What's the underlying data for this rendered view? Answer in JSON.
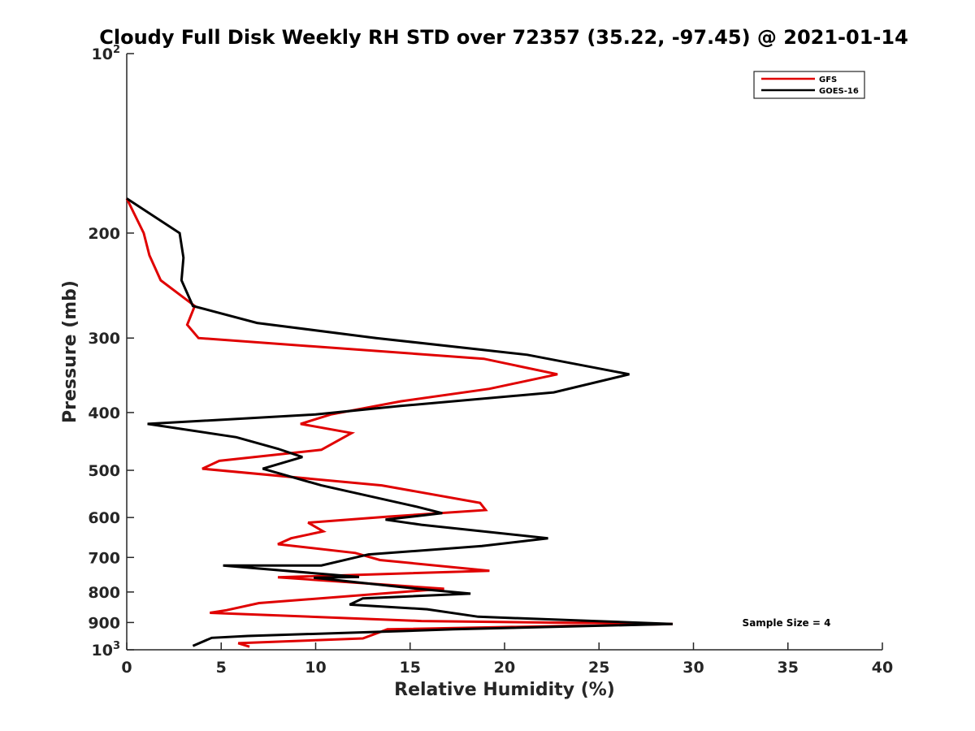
{
  "chart_data": {
    "type": "line",
    "title": "Cloudy Full Disk Weekly RH STD over 72357 (35.22, -97.45) @ 2021-01-14",
    "xlabel": "Relative Humidity (%)",
    "ylabel": "Pressure (mb)",
    "xlim": [
      0,
      40
    ],
    "ylim": [
      100,
      1000
    ],
    "y_scale": "log",
    "y_reversed": true,
    "x_ticks": [
      "0",
      "5",
      "10",
      "15",
      "20",
      "25",
      "30",
      "35",
      "40"
    ],
    "y_ticks": [
      {
        "value": 100,
        "base": "10",
        "exp": "2"
      },
      {
        "value": 200,
        "label": "200"
      },
      {
        "value": 300,
        "label": "300"
      },
      {
        "value": 400,
        "label": "400"
      },
      {
        "value": 500,
        "label": "500"
      },
      {
        "value": 600,
        "label": "600"
      },
      {
        "value": 700,
        "label": "700"
      },
      {
        "value": 800,
        "label": "800"
      },
      {
        "value": 900,
        "label": "900"
      },
      {
        "value": 1000,
        "base": "10",
        "exp": "3"
      }
    ],
    "grid": false,
    "legend_position": "top-right",
    "annotation": "Sample Size = 4",
    "series": [
      {
        "name": "GFS",
        "color": "#e00000",
        "points": [
          [
            0.0,
            175
          ],
          [
            0.9,
            200
          ],
          [
            1.2,
            218
          ],
          [
            1.8,
            240
          ],
          [
            3.6,
            265
          ],
          [
            3.2,
            285
          ],
          [
            3.8,
            300
          ],
          [
            18.9,
            325
          ],
          [
            22.8,
            345
          ],
          [
            19.2,
            365
          ],
          [
            14.5,
            383
          ],
          [
            10.8,
            403
          ],
          [
            9.2,
            418
          ],
          [
            11.9,
            433
          ],
          [
            10.3,
            462
          ],
          [
            4.9,
            482
          ],
          [
            4.0,
            497
          ],
          [
            13.5,
            530
          ],
          [
            18.7,
            567
          ],
          [
            19.0,
            583
          ],
          [
            13.8,
            598
          ],
          [
            9.6,
            612
          ],
          [
            10.4,
            633
          ],
          [
            8.7,
            650
          ],
          [
            8.0,
            665
          ],
          [
            12.1,
            688
          ],
          [
            13.4,
            707
          ],
          [
            19.2,
            737
          ],
          [
            8.0,
            756
          ],
          [
            16.8,
            790
          ],
          [
            7.0,
            835
          ],
          [
            5.3,
            858
          ],
          [
            4.4,
            867
          ],
          [
            15.6,
            895
          ],
          [
            28.9,
            905
          ],
          [
            13.8,
            924
          ],
          [
            12.5,
            957
          ],
          [
            5.9,
            975
          ],
          [
            6.5,
            988
          ]
        ]
      },
      {
        "name": "GOES-16",
        "color": "#000000",
        "points": [
          [
            0.0,
            175
          ],
          [
            2.8,
            200
          ],
          [
            3.0,
            220
          ],
          [
            2.9,
            240
          ],
          [
            3.5,
            265
          ],
          [
            6.9,
            283
          ],
          [
            13.2,
            300
          ],
          [
            21.2,
            320
          ],
          [
            26.6,
            345
          ],
          [
            22.6,
            370
          ],
          [
            14.5,
            390
          ],
          [
            10.0,
            403
          ],
          [
            1.1,
            418
          ],
          [
            5.8,
            440
          ],
          [
            8.0,
            460
          ],
          [
            9.3,
            475
          ],
          [
            7.2,
            497
          ],
          [
            10.3,
            530
          ],
          [
            15.3,
            575
          ],
          [
            16.7,
            590
          ],
          [
            13.7,
            605
          ],
          [
            15.6,
            617
          ],
          [
            22.3,
            650
          ],
          [
            18.8,
            670
          ],
          [
            12.8,
            692
          ],
          [
            10.3,
            722
          ],
          [
            5.1,
            722
          ],
          [
            12.3,
            755
          ],
          [
            9.9,
            757
          ],
          [
            15.4,
            790
          ],
          [
            18.2,
            805
          ],
          [
            12.5,
            820
          ],
          [
            11.8,
            840
          ],
          [
            15.9,
            855
          ],
          [
            18.6,
            880
          ],
          [
            28.9,
            905
          ],
          [
            17.3,
            924
          ],
          [
            14.7,
            930
          ],
          [
            6.4,
            948
          ],
          [
            4.5,
            955
          ],
          [
            3.5,
            985
          ]
        ]
      }
    ]
  }
}
